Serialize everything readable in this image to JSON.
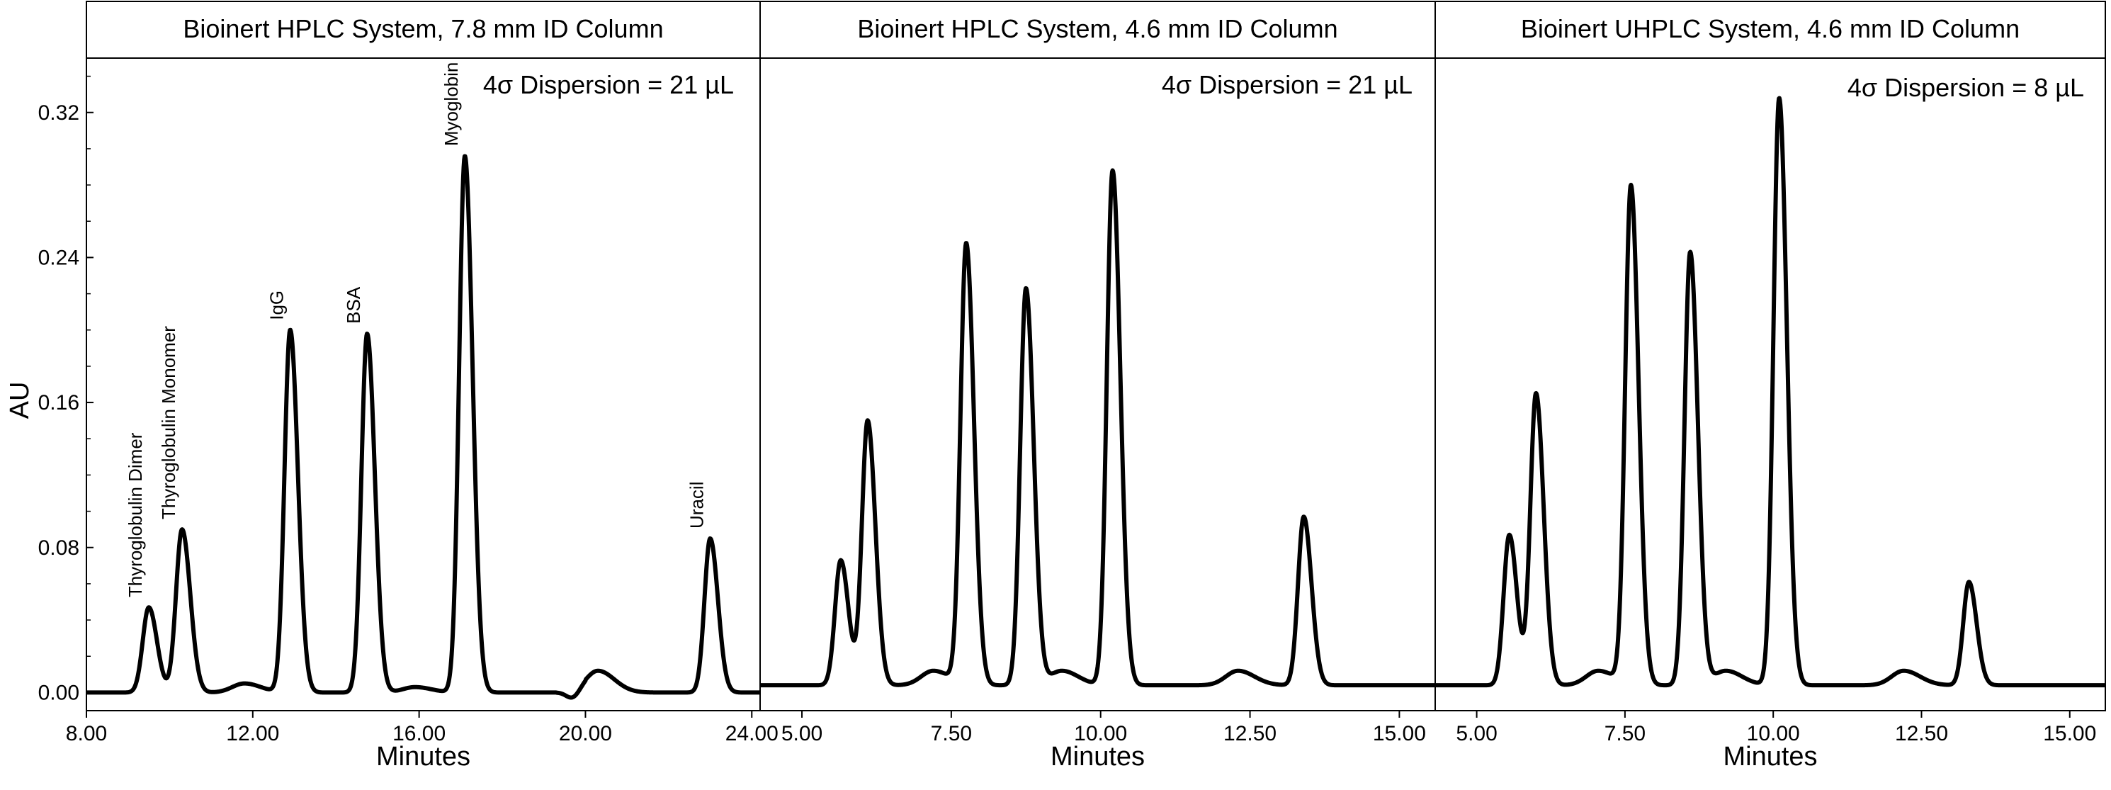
{
  "chart_data": {
    "type": "line",
    "ylabel": "AU",
    "xlabel": "Minutes",
    "yticks": [
      "0.00",
      "0.08",
      "0.16",
      "0.24",
      "0.32"
    ],
    "ylim": [
      -0.01,
      0.35
    ],
    "line_color": "#000000",
    "panels": [
      {
        "title": "Bioinert HPLC System, 7.8 mm ID Column",
        "annotation": "4σ Dispersion = 21 µL",
        "xlim": [
          8.0,
          24.2
        ],
        "xticks": [
          "8.00",
          "12.00",
          "16.00",
          "20.00",
          "24.00"
        ],
        "xtick_values": [
          8,
          12,
          16,
          20,
          24
        ],
        "baseline": 0.0,
        "peaks": [
          {
            "label": "Thyroglobulin Dimer",
            "x": 9.5,
            "y": 0.047
          },
          {
            "label": "Thyroglobulin Monomer",
            "x": 10.3,
            "y": 0.09
          },
          {
            "label": "",
            "x": 11.8,
            "y": 0.005
          },
          {
            "label": "IgG",
            "x": 12.9,
            "y": 0.2
          },
          {
            "label": "BSA",
            "x": 14.75,
            "y": 0.198
          },
          {
            "label": "",
            "x": 15.9,
            "y": 0.003
          },
          {
            "label": "Myoglobin",
            "x": 17.1,
            "y": 0.296
          },
          {
            "label": "",
            "x": 20.3,
            "y": 0.012
          },
          {
            "label": "Uracil",
            "x": 23.0,
            "y": 0.085
          }
        ]
      },
      {
        "title": "Bioinert HPLC System, 4.6 mm ID Column",
        "annotation": "4σ Dispersion = 21 µL",
        "xlim": [
          4.3,
          15.6
        ],
        "xticks": [
          "5.00",
          "7.50",
          "10.00",
          "12.50",
          "15.00"
        ],
        "xtick_values": [
          5,
          7.5,
          10,
          12.5,
          15
        ],
        "baseline": 0.004,
        "peaks": [
          {
            "x": 5.65,
            "y": 0.073
          },
          {
            "x": 6.1,
            "y": 0.15
          },
          {
            "x": 7.2,
            "y": 0.012
          },
          {
            "x": 7.75,
            "y": 0.247
          },
          {
            "x": 8.75,
            "y": 0.223
          },
          {
            "x": 9.35,
            "y": 0.012
          },
          {
            "x": 10.2,
            "y": 0.288
          },
          {
            "x": 12.3,
            "y": 0.012
          },
          {
            "x": 13.4,
            "y": 0.097
          }
        ]
      },
      {
        "title": "Bioinert UHPLC System, 4.6 mm ID Column",
        "annotation": "4σ Dispersion = 8 µL",
        "xlim": [
          4.3,
          15.6
        ],
        "xticks": [
          "5.00",
          "7.50",
          "10.00",
          "12.50",
          "15.00"
        ],
        "xtick_values": [
          5,
          7.5,
          10,
          12.5,
          15
        ],
        "baseline": 0.004,
        "peaks": [
          {
            "x": 5.55,
            "y": 0.087
          },
          {
            "x": 6.0,
            "y": 0.165
          },
          {
            "x": 7.05,
            "y": 0.012
          },
          {
            "x": 7.6,
            "y": 0.279
          },
          {
            "x": 8.6,
            "y": 0.243
          },
          {
            "x": 9.2,
            "y": 0.012
          },
          {
            "x": 10.1,
            "y": 0.328
          },
          {
            "x": 12.2,
            "y": 0.012
          },
          {
            "x": 13.3,
            "y": 0.061
          }
        ]
      }
    ]
  }
}
